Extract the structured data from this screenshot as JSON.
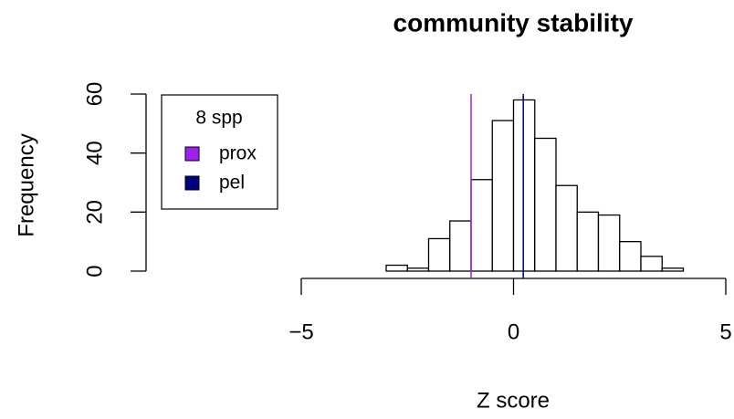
{
  "chart_data": {
    "type": "histogram",
    "title": "community stability",
    "x_label": "Z score",
    "y_label": "Frequency",
    "bins": [
      -3,
      -2.5,
      -2,
      -1.5,
      -1,
      -0.5,
      0,
      0.5,
      1,
      1.5,
      2,
      2.5,
      3,
      3.5,
      4
    ],
    "counts": [
      2,
      1,
      11,
      17,
      31,
      51,
      58,
      45,
      29,
      20,
      19,
      10,
      5,
      1
    ],
    "bar_color": "#ffffff",
    "xlim": [
      -5,
      5
    ],
    "xticks": [
      {
        "value": -5,
        "label": "−5"
      },
      0,
      5
    ],
    "ylim": [
      0,
      60
    ],
    "yticks": [
      0,
      20,
      40,
      60
    ],
    "legend_title": "8 spp",
    "legend_position": "top-left",
    "series": [
      {
        "name": "prox",
        "color": "#a020f0",
        "values": [
          -1
        ]
      },
      {
        "name": "pel",
        "color": "#000080",
        "values": [
          0.23
        ]
      }
    ]
  }
}
